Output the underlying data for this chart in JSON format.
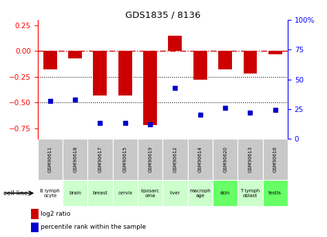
{
  "title": "GDS1835 / 8136",
  "gsm_labels": [
    "GSM90611",
    "GSM90618",
    "GSM90617",
    "GSM90615",
    "GSM90619",
    "GSM90612",
    "GSM90614",
    "GSM90620",
    "GSM90613",
    "GSM90616"
  ],
  "cell_lines": [
    "B lymph\nocyte",
    "brain",
    "breast",
    "cervix",
    "liposarc\noma",
    "liver",
    "macroph\nage",
    "skin",
    "T lymph\noblast",
    "testis"
  ],
  "cell_bg_colors": [
    "#ffffff",
    "#ccffcc",
    "#ccffcc",
    "#ccffcc",
    "#ccffcc",
    "#ccffcc",
    "#ccffcc",
    "#66ff66",
    "#ccffcc",
    "#66ff66"
  ],
  "log2_ratio": [
    -0.18,
    -0.07,
    -0.43,
    -0.43,
    -0.72,
    0.15,
    -0.28,
    -0.18,
    -0.22,
    -0.03
  ],
  "pct_rank": [
    32,
    33,
    13,
    13,
    12,
    43,
    20,
    26,
    22,
    24
  ],
  "bar_color": "#cc0000",
  "dot_color": "#0000cc",
  "zero_line_color": "#cc0000",
  "dotted_line_color": "#000000",
  "ylim_left": [
    -0.85,
    0.3
  ],
  "ylim_right": [
    0,
    100
  ],
  "left_yticks": [
    0.25,
    0.0,
    -0.25,
    -0.5,
    -0.75
  ],
  "right_ytick_vals": [
    100,
    75,
    50,
    25,
    0
  ],
  "right_ytick_labels": [
    "100%",
    "75",
    "50",
    "25",
    "0"
  ],
  "hline_zero": 0,
  "hlines_dotted": [
    -0.25,
    -0.5
  ],
  "legend_red_label": "log2 ratio",
  "legend_blue_label": "percentile rank within the sample",
  "cell_line_label": "cell line",
  "bar_width": 0.55,
  "gsm_box_color": "#c8c8c8"
}
